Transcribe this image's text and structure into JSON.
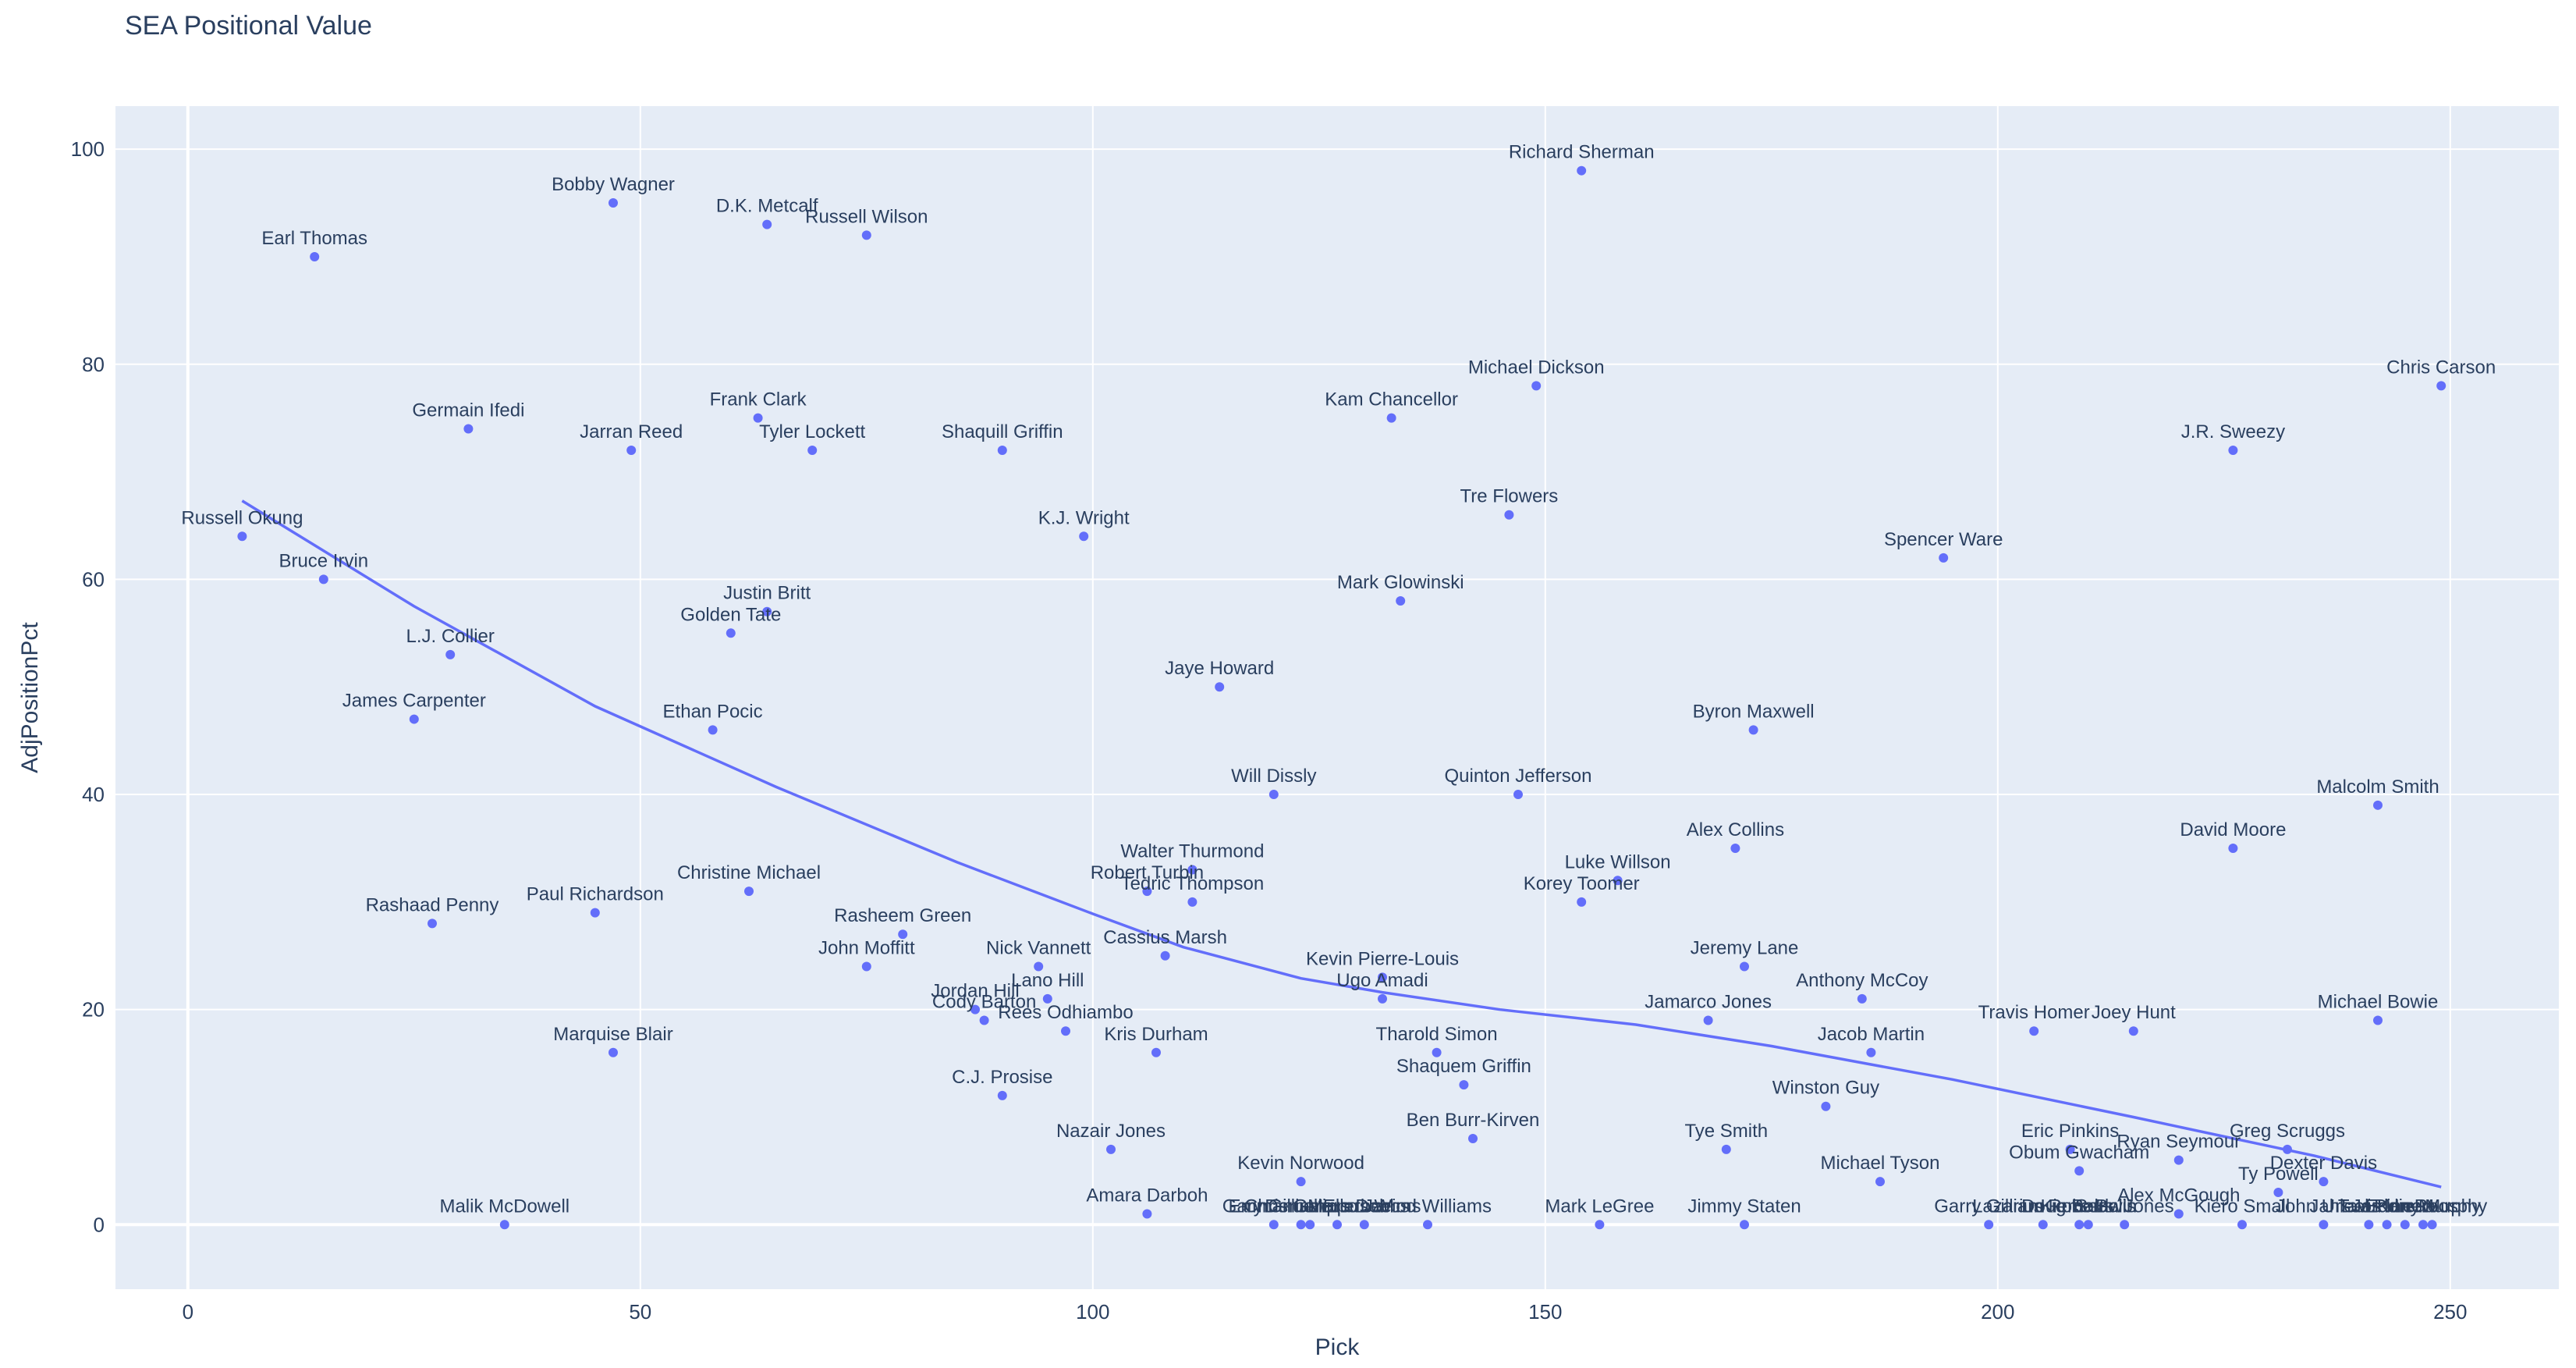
{
  "chart_data": {
    "type": "scatter",
    "title": "SEA Positional Value",
    "xlabel": "Pick",
    "ylabel": "AdjPositionPct",
    "xlim": [
      -8,
      262
    ],
    "ylim": [
      -6,
      104
    ],
    "xticks": [
      0,
      50,
      100,
      150,
      200,
      250
    ],
    "yticks": [
      0,
      20,
      40,
      60,
      80,
      100
    ],
    "grid": true,
    "colors": {
      "marker": "#636efa",
      "line": "#636efa",
      "plot_bg": "#e5ecf6",
      "grid": "#ffffff",
      "text": "#2a3f5f"
    },
    "points": [
      {
        "label": "Earl Thomas",
        "x": 14,
        "y": 90
      },
      {
        "label": "Bobby Wagner",
        "x": 47,
        "y": 95
      },
      {
        "label": "D.K. Metcalf",
        "x": 64,
        "y": 93
      },
      {
        "label": "Russell Wilson",
        "x": 75,
        "y": 92
      },
      {
        "label": "Richard Sherman",
        "x": 154,
        "y": 98
      },
      {
        "label": "Germain Ifedi",
        "x": 31,
        "y": 74
      },
      {
        "label": "Jarran Reed",
        "x": 49,
        "y": 72
      },
      {
        "label": "Frank Clark",
        "x": 63,
        "y": 75
      },
      {
        "label": "Tyler Lockett",
        "x": 69,
        "y": 72
      },
      {
        "label": "Shaquill Griffin",
        "x": 90,
        "y": 72
      },
      {
        "label": "Kam Chancellor",
        "x": 133,
        "y": 75
      },
      {
        "label": "Michael Dickson",
        "x": 149,
        "y": 78
      },
      {
        "label": "Chris Carson",
        "x": 249,
        "y": 78
      },
      {
        "label": "J.R. Sweezy",
        "x": 226,
        "y": 72
      },
      {
        "label": "Russell Okung",
        "x": 6,
        "y": 64
      },
      {
        "label": "Bruce Irvin",
        "x": 15,
        "y": 60
      },
      {
        "label": "K.J. Wright",
        "x": 99,
        "y": 64
      },
      {
        "label": "Tre Flowers",
        "x": 146,
        "y": 66
      },
      {
        "label": "Spencer Ware",
        "x": 194,
        "y": 62
      },
      {
        "label": "Justin Britt",
        "x": 64,
        "y": 57
      },
      {
        "label": "Golden Tate",
        "x": 60,
        "y": 55
      },
      {
        "label": "Mark Glowinski",
        "x": 134,
        "y": 58
      },
      {
        "label": "L.J. Collier",
        "x": 29,
        "y": 53
      },
      {
        "label": "Jaye Howard",
        "x": 114,
        "y": 50
      },
      {
        "label": "James Carpenter",
        "x": 25,
        "y": 47
      },
      {
        "label": "Ethan Pocic",
        "x": 58,
        "y": 46
      },
      {
        "label": "Byron Maxwell",
        "x": 173,
        "y": 46
      },
      {
        "label": "Will Dissly",
        "x": 120,
        "y": 40
      },
      {
        "label": "Quinton Jefferson",
        "x": 147,
        "y": 40
      },
      {
        "label": "Malcolm Smith",
        "x": 242,
        "y": 39
      },
      {
        "label": "Alex Collins",
        "x": 171,
        "y": 35
      },
      {
        "label": "David Moore",
        "x": 226,
        "y": 35
      },
      {
        "label": "Walter Thurmond",
        "x": 111,
        "y": 33
      },
      {
        "label": "Luke Willson",
        "x": 158,
        "y": 32
      },
      {
        "label": "Robert Turbin",
        "x": 106,
        "y": 31
      },
      {
        "label": "Christine Michael",
        "x": 62,
        "y": 31
      },
      {
        "label": "Tedric Thompson",
        "x": 111,
        "y": 30
      },
      {
        "label": "Korey Toomer",
        "x": 154,
        "y": 30
      },
      {
        "label": "Paul Richardson",
        "x": 45,
        "y": 29
      },
      {
        "label": "Rashaad Penny",
        "x": 27,
        "y": 28
      },
      {
        "label": "Rasheem Green",
        "x": 79,
        "y": 27
      },
      {
        "label": "Cassius Marsh",
        "x": 108,
        "y": 25
      },
      {
        "label": "John Moffitt",
        "x": 75,
        "y": 24
      },
      {
        "label": "Nick Vannett",
        "x": 94,
        "y": 24
      },
      {
        "label": "Kevin Pierre-Louis",
        "x": 132,
        "y": 23
      },
      {
        "label": "Jeremy Lane",
        "x": 172,
        "y": 24
      },
      {
        "label": "Lano Hill",
        "x": 95,
        "y": 21
      },
      {
        "label": "Ugo Amadi",
        "x": 132,
        "y": 21
      },
      {
        "label": "Anthony McCoy",
        "x": 185,
        "y": 21
      },
      {
        "label": "Jordan Hill",
        "x": 87,
        "y": 20
      },
      {
        "label": "Cody Barton",
        "x": 88,
        "y": 19
      },
      {
        "label": "Jamarco Jones",
        "x": 168,
        "y": 19
      },
      {
        "label": "Michael Bowie",
        "x": 242,
        "y": 19
      },
      {
        "label": "Rees Odhiambo",
        "x": 97,
        "y": 18
      },
      {
        "label": "Travis Homer",
        "x": 204,
        "y": 18
      },
      {
        "label": "Joey Hunt",
        "x": 215,
        "y": 18
      },
      {
        "label": "Marquise Blair",
        "x": 47,
        "y": 16
      },
      {
        "label": "Kris Durham",
        "x": 107,
        "y": 16
      },
      {
        "label": "Tharold Simon",
        "x": 138,
        "y": 16
      },
      {
        "label": "Jacob Martin",
        "x": 186,
        "y": 16
      },
      {
        "label": "Shaquem Griffin",
        "x": 141,
        "y": 13
      },
      {
        "label": "C.J. Prosise",
        "x": 90,
        "y": 12
      },
      {
        "label": "Winston Guy",
        "x": 181,
        "y": 11
      },
      {
        "label": "Ben Burr-Kirven",
        "x": 142,
        "y": 8
      },
      {
        "label": "Nazair Jones",
        "x": 102,
        "y": 7
      },
      {
        "label": "Tye Smith",
        "x": 170,
        "y": 7
      },
      {
        "label": "Eric Pinkins",
        "x": 208,
        "y": 7
      },
      {
        "label": "Greg Scruggs",
        "x": 232,
        "y": 7
      },
      {
        "label": "Ryan Seymour",
        "x": 220,
        "y": 6
      },
      {
        "label": "Obum Gwacham",
        "x": 209,
        "y": 5
      },
      {
        "label": "Dexter Davis",
        "x": 236,
        "y": 4
      },
      {
        "label": "Kevin Norwood",
        "x": 123,
        "y": 4
      },
      {
        "label": "Michael Tyson",
        "x": 187,
        "y": 4
      },
      {
        "label": "Ty Powell",
        "x": 231,
        "y": 3
      },
      {
        "label": "Alex McGough",
        "x": 220,
        "y": 1
      },
      {
        "label": "Amara Darboh",
        "x": 106,
        "y": 1
      },
      {
        "label": "Malik McDowell",
        "x": 35,
        "y": 0
      },
      {
        "label": "Gary Gilliam",
        "x": 120,
        "y": 0
      },
      {
        "label": "Chris Galippo",
        "x": 123,
        "y": 0
      },
      {
        "label": "Emmanuel Ellerbee",
        "x": 124,
        "y": 0
      },
      {
        "label": "Demarcus Dobbs",
        "x": 127,
        "y": 0
      },
      {
        "label": "Marcus Wims",
        "x": 130,
        "y": 0
      },
      {
        "label": "Jarrod Williams",
        "x": 137,
        "y": 0
      },
      {
        "label": "Mark LeGree",
        "x": 156,
        "y": 0
      },
      {
        "label": "Jimmy Staten",
        "x": 172,
        "y": 0
      },
      {
        "label": "Garry Gilliam",
        "x": 199,
        "y": 0
      },
      {
        "label": "Lazarius Roberts",
        "x": 205,
        "y": 0
      },
      {
        "label": "Doug Baldwin",
        "x": 209,
        "y": 0
      },
      {
        "label": "Kierre Bells",
        "x": 210,
        "y": 0
      },
      {
        "label": "Sean Jones",
        "x": 214,
        "y": 0
      },
      {
        "label": "Kiero Small",
        "x": 227,
        "y": 0
      },
      {
        "label": "John Ursua",
        "x": 236,
        "y": 0
      },
      {
        "label": "Jahleel Pinner",
        "x": 241,
        "y": 0
      },
      {
        "label": "Tavis Ursua",
        "x": 243,
        "y": 0
      },
      {
        "label": "Jordan Roos",
        "x": 245,
        "y": 0
      },
      {
        "label": "Eddie Murphy",
        "x": 247,
        "y": 0
      },
      {
        "label": "Kony Murphy",
        "x": 248,
        "y": 0
      }
    ],
    "trendline": {
      "x": [
        6,
        25,
        45,
        65,
        85,
        100,
        110,
        123,
        132,
        145,
        160,
        175,
        195,
        215,
        235,
        249
      ],
      "y": [
        67.3,
        57.5,
        48.2,
        40.7,
        33.7,
        28.9,
        25.8,
        22.9,
        21.6,
        20.0,
        18.6,
        16.6,
        13.5,
        10.0,
        6.4,
        3.5
      ]
    }
  }
}
